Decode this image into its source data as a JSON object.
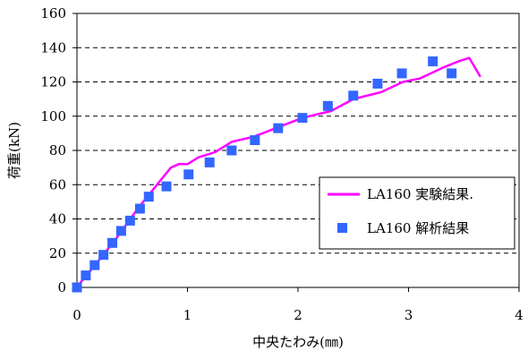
{
  "chart_data": {
    "type": "scatter",
    "xlabel": "中央たわみ(㎜)",
    "ylabel": "荷重(kN)",
    "xlim": [
      0,
      4
    ],
    "ylim": [
      0,
      160
    ],
    "x_ticks": [
      "0",
      "1",
      "2",
      "3",
      "4"
    ],
    "y_ticks": [
      "0",
      "20",
      "40",
      "60",
      "80",
      "100",
      "120",
      "140",
      "160"
    ],
    "grid": "horizontal dashed",
    "legend_position": "lower-right",
    "series": [
      {
        "name": "LA160 実験結果.",
        "kind": "line",
        "color": "#ff00ff",
        "x": [
          0,
          0.06,
          0.15,
          0.25,
          0.35,
          0.45,
          0.55,
          0.65,
          0.75,
          0.85,
          0.92,
          1.0,
          1.1,
          1.25,
          1.4,
          1.6,
          1.8,
          2.0,
          2.1,
          2.3,
          2.5,
          2.75,
          2.95,
          3.1,
          3.3,
          3.45,
          3.55,
          3.65
        ],
        "y": [
          0,
          5,
          12,
          20,
          28,
          37,
          46,
          54,
          62,
          70,
          72,
          72,
          76,
          79,
          85,
          88,
          93,
          98,
          100,
          103,
          110,
          114,
          120,
          122,
          128,
          132,
          134,
          123
        ]
      },
      {
        "name": "LA160 解析結果",
        "kind": "scatter",
        "color": "#3366ff",
        "marker": "square",
        "x": [
          0.0,
          0.08,
          0.16,
          0.24,
          0.32,
          0.4,
          0.48,
          0.57,
          0.65,
          0.81,
          1.01,
          1.2,
          1.4,
          1.61,
          1.82,
          2.04,
          2.27,
          2.5,
          2.72,
          2.94,
          3.22,
          3.39
        ],
        "y": [
          0,
          7,
          13,
          19,
          26,
          33,
          39,
          46,
          53,
          59,
          66,
          73,
          80,
          86,
          93,
          99,
          106,
          112,
          119,
          125,
          132,
          125
        ]
      }
    ]
  }
}
